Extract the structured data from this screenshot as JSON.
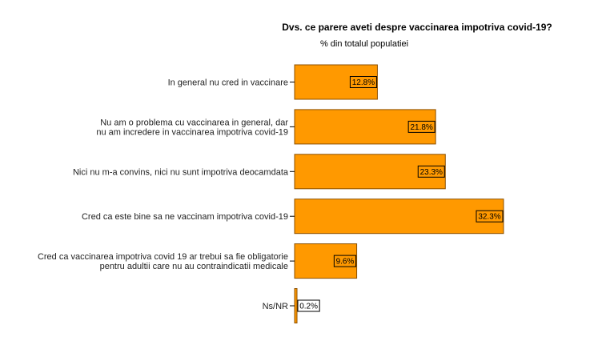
{
  "chart_data": {
    "type": "bar",
    "orientation": "horizontal",
    "title": "Dvs. ce parere aveti despre vaccinarea impotriva covid-19?",
    "subtitle": "% din totalul populatiei",
    "categories": [
      [
        "In general nu cred in vaccinare"
      ],
      [
        "Nu am o problema cu vaccinarea in general, dar",
        "nu am incredere in vaccinarea impotriva covid-19"
      ],
      [
        "Nici nu m-a convins, nici nu sunt impotriva deocamdata"
      ],
      [
        "Cred ca este bine sa ne vaccinam impotriva covid-19"
      ],
      [
        "Cred ca vaccinarea impotriva covid 19 ar trebui sa fie obligatorie",
        "pentru adultii care nu au contraindicatii medicale"
      ],
      [
        "Ns/NR"
      ]
    ],
    "values": [
      12.8,
      21.8,
      23.3,
      32.3,
      9.6,
      0.2
    ],
    "data_labels": [
      "12.8%",
      "21.8%",
      "23.3%",
      "32.3%",
      "9.6%",
      "0.2%"
    ],
    "xlim": [
      0,
      32.3
    ],
    "grid": false,
    "bar_color": "#ff9900",
    "bar_edge_color": "#8c5000"
  }
}
